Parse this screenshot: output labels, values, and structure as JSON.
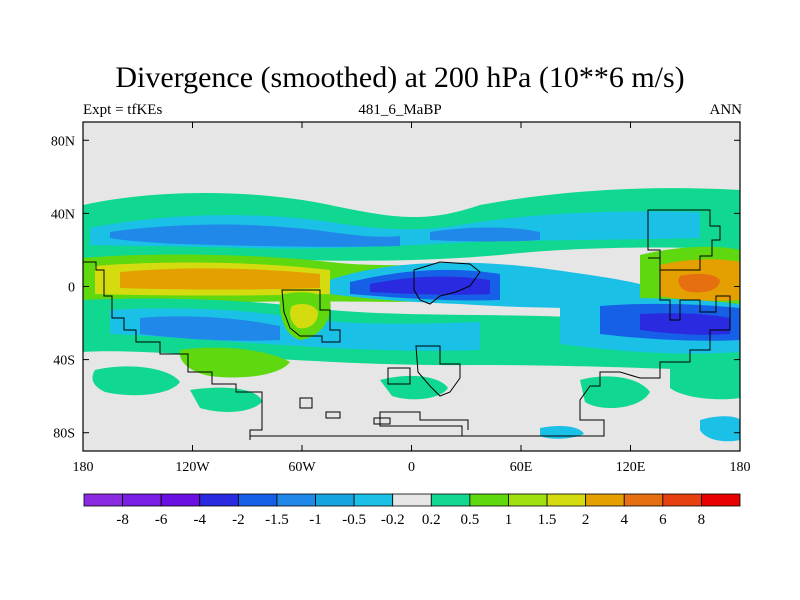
{
  "title": "Divergence (smoothed) at 200 hPa (10**6 m/s)",
  "left_label": "Expt = tfKEs",
  "center_label": "481_6_MaBP",
  "right_label": "ANN",
  "lat_ticks": [
    {
      "label": "80N",
      "value": 80
    },
    {
      "label": "40N",
      "value": 40
    },
    {
      "label": "0",
      "value": 0
    },
    {
      "label": "40S",
      "value": -40
    },
    {
      "label": "80S",
      "value": -80
    }
  ],
  "lon_ticks": [
    {
      "label": "180",
      "value": -180
    },
    {
      "label": "120W",
      "value": -120
    },
    {
      "label": "60W",
      "value": -60
    },
    {
      "label": "0",
      "value": 0
    },
    {
      "label": "60E",
      "value": 60
    },
    {
      "label": "120E",
      "value": 120
    },
    {
      "label": "180",
      "value": 180
    }
  ],
  "colorbar": {
    "colors": [
      "#8a2be2",
      "#7b1ee6",
      "#6a10e0",
      "#2a2ae0",
      "#1560e6",
      "#2088e8",
      "#16a4e0",
      "#1ac0e6",
      "#e6e6e6",
      "#10d890",
      "#60d810",
      "#a0e010",
      "#d4dc10",
      "#e4a000",
      "#e67010",
      "#e64010",
      "#e60000"
    ],
    "labels": [
      "-8",
      "-6",
      "-4",
      "-2",
      "-1.5",
      "-1",
      "-0.5",
      "-0.2",
      "0.2",
      "0.5",
      "1",
      "1.5",
      "2",
      "4",
      "6",
      "8"
    ]
  }
}
